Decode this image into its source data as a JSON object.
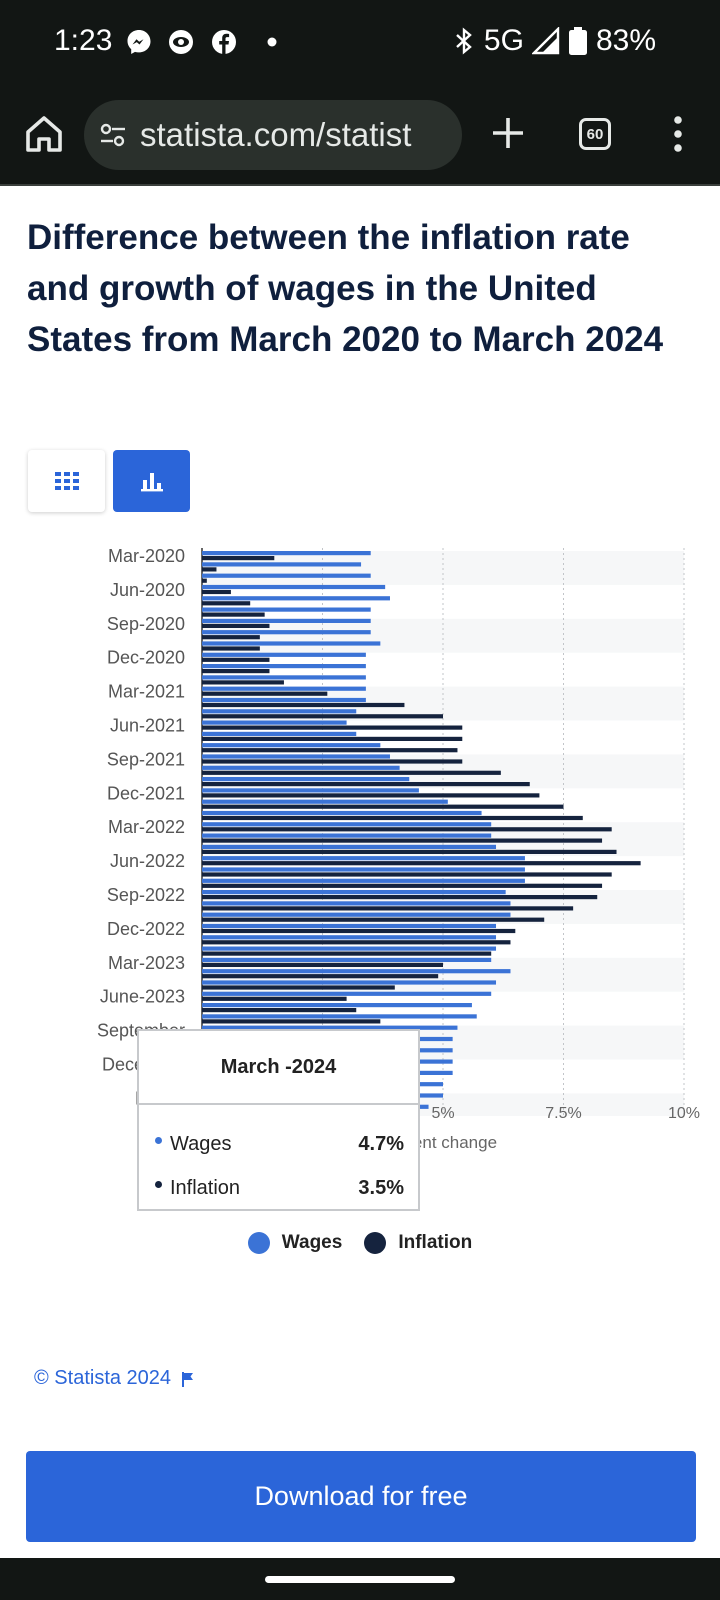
{
  "status_bar": {
    "time": "1:23",
    "network": "5G",
    "battery": "83%",
    "icons": [
      "messenger-icon",
      "eye-icon",
      "facebook-icon",
      "dot-icon",
      "bluetooth-icon",
      "signal-icon",
      "battery-icon"
    ]
  },
  "browser": {
    "url": "statista.com/statist",
    "tab_count": "60"
  },
  "page": {
    "title": "Difference between the inflation rate and growth of wages in the United States from March 2020 to March 2024",
    "download_label": "Download for free",
    "copyright": "© Statista 2024"
  },
  "colors": {
    "wages": "#3b73d6",
    "inflation": "#15233e",
    "accent": "#2b65d9"
  },
  "tooltip": {
    "title": "March -2024",
    "rows": [
      {
        "label": "Wages",
        "value": "4.7%"
      },
      {
        "label": "Inflation",
        "value": "3.5%"
      }
    ]
  },
  "chart_data": {
    "type": "bar",
    "orientation": "horizontal",
    "y_tick_labels": [
      "Mar-2020",
      "Jun-2020",
      "Sep-2020",
      "Dec-2020",
      "Mar-2021",
      "Jun-2021",
      "Sep-2021",
      "Dec-2021",
      "Mar-2022",
      "Jun-2022",
      "Sep-2022",
      "Dec-2022",
      "Mar-2023",
      "June-2023",
      "September",
      "December",
      "March"
    ],
    "x_tick_labels": [
      "5%",
      "7.5%",
      "10%"
    ],
    "x_axis_label_visible": "ent change",
    "xlim": [
      0,
      10
    ],
    "grid": true,
    "legend": "bottom",
    "series": [
      {
        "name": "Wages",
        "values": [
          3.5,
          3.3,
          3.5,
          3.8,
          3.9,
          3.5,
          3.5,
          3.5,
          3.7,
          3.4,
          3.4,
          3.4,
          3.4,
          3.4,
          3.2,
          3.0,
          3.2,
          3.7,
          3.9,
          4.1,
          4.3,
          4.5,
          5.1,
          5.8,
          6.0,
          6.0,
          6.1,
          6.7,
          6.7,
          6.7,
          6.3,
          6.4,
          6.4,
          6.1,
          6.1,
          6.1,
          6.0,
          6.4,
          6.1,
          6.0,
          5.6,
          5.7,
          5.3,
          5.2,
          5.2,
          5.2,
          5.2,
          5.0,
          5.0,
          4.7
        ]
      },
      {
        "name": "Inflation",
        "values": [
          1.5,
          0.3,
          0.1,
          0.6,
          1.0,
          1.3,
          1.4,
          1.2,
          1.2,
          1.4,
          1.4,
          1.7,
          2.6,
          4.2,
          5.0,
          5.4,
          5.4,
          5.3,
          5.4,
          6.2,
          6.8,
          7.0,
          7.5,
          7.9,
          8.5,
          8.3,
          8.6,
          9.1,
          8.5,
          8.3,
          8.2,
          7.7,
          7.1,
          6.5,
          6.4,
          6.0,
          5.0,
          4.9,
          4.0,
          3.0,
          3.2,
          3.7,
          3.7,
          3.2,
          3.1,
          3.4,
          3.1,
          3.2,
          3.5,
          3.5
        ]
      }
    ]
  }
}
